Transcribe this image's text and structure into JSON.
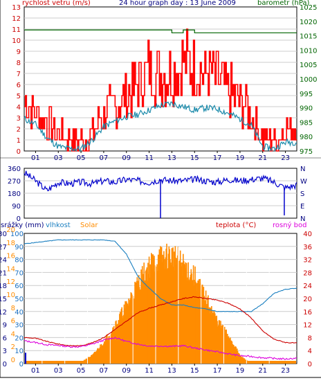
{
  "header": {
    "left_label": "rychlost vetru (m/s)",
    "title": "24 hour graph day : 13 June 2009",
    "right_label": "barometr (hPa)"
  },
  "bottom_labels": {
    "rain": "srážky (mm)",
    "humidity": "vlhkost",
    "solar": "Solar",
    "temp": "teplota (°C)",
    "dew": "rosný bod"
  },
  "colors": {
    "wind": "#ff0000",
    "gust": "#ff0000",
    "avg_wind": "#1a8aaa",
    "baro": "#006400",
    "dir": "#0000cc",
    "solar": "#ff8c00",
    "humidity": "#1a7fc0",
    "temp": "#cc0000",
    "dew": "#dd00dd",
    "rain": "#0000cc",
    "left_axis_top": "#cc0000",
    "right_axis_top": "#006400",
    "left_axis_bottom": "#1a6fc0",
    "right_axis_bottom": "#cc0000"
  },
  "chart_data": [
    {
      "type": "line",
      "name": "wind-panel",
      "x_ticks": [
        "01",
        "03",
        "05",
        "07",
        "09",
        "11",
        "13",
        "15",
        "17",
        "19",
        "21",
        "23"
      ],
      "y_left_ticks": [
        "0",
        "1",
        "2",
        "3",
        "4",
        "5",
        "6",
        "7",
        "8",
        "9",
        "10",
        "11",
        "12",
        "13"
      ],
      "y_left_range": [
        0,
        13
      ],
      "y_right_ticks": [
        "975",
        "980",
        "985",
        "990",
        "995",
        "1000",
        "1005",
        "1010",
        "1015",
        "1020",
        "1025"
      ],
      "y_right_range": [
        975,
        1025
      ],
      "hours": [
        0,
        1,
        2,
        3,
        4,
        5,
        6,
        7,
        8,
        9,
        10,
        11,
        12,
        13,
        14,
        15,
        16,
        17,
        18,
        19,
        20,
        21,
        22,
        23,
        24
      ],
      "gust": [
        4.5,
        3.5,
        2.5,
        1.5,
        1.0,
        1.0,
        1.5,
        3.5,
        4.0,
        5.0,
        6.0,
        7.5,
        7.0,
        7.0,
        8.0,
        7.5,
        7.0,
        6.5,
        5.5,
        4.5,
        3.5,
        1.0,
        1.0,
        2.0,
        2.5
      ],
      "wind": [
        3.0,
        2.5,
        1.5,
        0.5,
        0.3,
        0.3,
        1.0,
        2.0,
        2.5,
        3.0,
        3.2,
        3.6,
        4.0,
        4.2,
        4.0,
        3.8,
        4.0,
        3.8,
        3.5,
        3.0,
        2.5,
        0.3,
        0.3,
        1.0,
        1.0
      ],
      "avg_wind": [
        2.9,
        2.4,
        1.2,
        0.4,
        0.2,
        0.2,
        1.0,
        2.2,
        2.7,
        3.1,
        3.3,
        3.7,
        4.1,
        4.3,
        4.0,
        3.7,
        3.9,
        3.8,
        3.4,
        2.9,
        2.3,
        0.4,
        0.2,
        0.8,
        0.8
      ],
      "baro": [
        1017,
        1017,
        1017,
        1017,
        1017,
        1017,
        1017,
        1017,
        1017,
        1017,
        1017,
        1017,
        1017,
        1016,
        1017,
        1016,
        1016,
        1016,
        1016,
        1016,
        1016,
        1016,
        1016,
        1016,
        1016
      ]
    },
    {
      "type": "line",
      "name": "direction-panel",
      "y_ticks": [
        "360",
        "270",
        "180",
        "90",
        "0"
      ],
      "y_right_ticks": [
        "N",
        "W",
        "S",
        "E",
        "N"
      ],
      "y_range": [
        0,
        360
      ],
      "hours": [
        0,
        1,
        2,
        3,
        4,
        5,
        6,
        7,
        8,
        9,
        10,
        11,
        12,
        13,
        14,
        15,
        16,
        17,
        18,
        19,
        20,
        21,
        22,
        23,
        24
      ],
      "direction": [
        330,
        270,
        200,
        260,
        250,
        260,
        250,
        270,
        260,
        280,
        270,
        260,
        280,
        270,
        270,
        280,
        270,
        260,
        280,
        270,
        280,
        290,
        260,
        220,
        240
      ]
    },
    {
      "type": "line",
      "name": "climate-panel",
      "y_left_rain_ticks": [
        "0",
        "3",
        "6",
        "9",
        "12",
        "15",
        "18",
        "21",
        "24",
        "27",
        "30"
      ],
      "y_left_rain_range": [
        0,
        30
      ],
      "y_left_hum_ticks": [
        "0",
        "10",
        "20",
        "30",
        "40",
        "50",
        "60",
        "70",
        "80",
        "90",
        "100"
      ],
      "y_left_solar_ticks": [
        "0",
        "2",
        "4",
        "6",
        "8",
        "10",
        "12",
        "14",
        "16",
        "18",
        "20"
      ],
      "y_right_temp_ticks": [
        "0",
        "4",
        "8",
        "12",
        "16",
        "20",
        "24",
        "28",
        "32",
        "36",
        "40"
      ],
      "y_right_temp_range": [
        0,
        40
      ],
      "hours": [
        0,
        1,
        2,
        3,
        4,
        5,
        6,
        7,
        8,
        9,
        10,
        11,
        12,
        13,
        14,
        15,
        16,
        17,
        18,
        19,
        20,
        21,
        22,
        23,
        24
      ],
      "humidity": [
        92,
        93,
        94,
        95,
        95,
        95,
        95,
        95,
        94,
        84,
        67,
        58,
        50,
        45,
        45,
        43,
        42,
        40,
        40,
        40,
        40,
        46,
        54,
        57,
        58
      ],
      "temp": [
        8.0,
        7.8,
        6.8,
        6.0,
        5.5,
        5.5,
        6.4,
        8.0,
        10.5,
        13.0,
        15.6,
        17.0,
        18.0,
        19.0,
        20.0,
        20.5,
        20.0,
        19.5,
        18.5,
        16.8,
        14.0,
        10.0,
        7.5,
        6.5,
        6.3
      ],
      "dew": [
        7.0,
        6.5,
        5.8,
        5.6,
        5.2,
        5.2,
        6.0,
        7.2,
        8.0,
        6.8,
        6.0,
        5.4,
        5.4,
        5.3,
        5.5,
        4.8,
        4.2,
        3.6,
        3.0,
        2.4,
        2.2,
        1.8,
        1.6,
        1.4,
        1.7
      ],
      "solar": [
        0,
        0,
        0,
        0,
        0,
        0.8,
        3.5,
        9,
        16,
        24,
        33,
        40,
        43,
        44,
        40,
        35,
        26,
        17,
        11,
        3,
        0,
        0,
        0,
        0,
        0
      ],
      "rain": [
        2.5,
        0,
        0,
        0,
        0,
        0,
        0,
        0,
        0,
        0,
        0,
        0,
        0,
        0,
        0,
        0,
        0,
        0,
        0,
        0,
        0,
        0,
        0,
        0,
        0
      ]
    }
  ]
}
